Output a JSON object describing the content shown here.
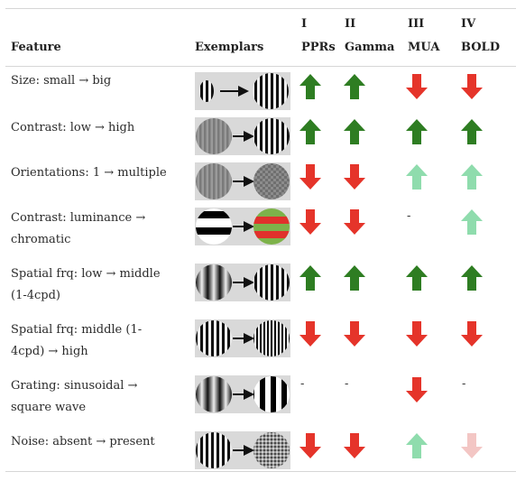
{
  "header": {
    "feature": "Feature",
    "exemplars": "Exemplars",
    "cols": [
      {
        "num": "I",
        "name": "PPRs"
      },
      {
        "num": "II",
        "name": "Gamma"
      },
      {
        "num": "III",
        "name": "MUA"
      },
      {
        "num": "IV",
        "name": "BOLD"
      }
    ]
  },
  "colors": {
    "up_strong": "#2e7d22",
    "up_light": "#8fdcad",
    "down_strong": "#e5342a",
    "down_light": "#f3c6c4"
  },
  "rows": [
    {
      "feature": "Size: small → big",
      "cells": [
        "up_strong",
        "up_strong",
        "down_strong",
        "down_strong"
      ]
    },
    {
      "feature": "Contrast: low → high",
      "cells": [
        "up_strong",
        "up_strong",
        "up_strong",
        "up_strong"
      ]
    },
    {
      "feature": "Orientations: 1 → multiple",
      "cells": [
        "down_strong",
        "down_strong",
        "up_light",
        "up_light"
      ]
    },
    {
      "feature": "Contrast: luminance → chromatic",
      "cells": [
        "down_strong",
        "down_strong",
        "-",
        "up_light"
      ]
    },
    {
      "feature": "Spatial frq: low → middle (1-4cpd)",
      "cells": [
        "up_strong",
        "up_strong",
        "up_strong",
        "up_strong"
      ]
    },
    {
      "feature": "Spatial frq: middle (1-4cpd) → high",
      "cells": [
        "down_strong",
        "down_strong",
        "down_strong",
        "down_strong"
      ]
    },
    {
      "feature": "Grating: sinusoidal → square wave",
      "cells": [
        "-",
        "-",
        "down_strong",
        "-"
      ]
    },
    {
      "feature": "Noise: absent → present",
      "cells": [
        "down_strong",
        "down_strong",
        "up_light",
        "down_light"
      ]
    }
  ]
}
